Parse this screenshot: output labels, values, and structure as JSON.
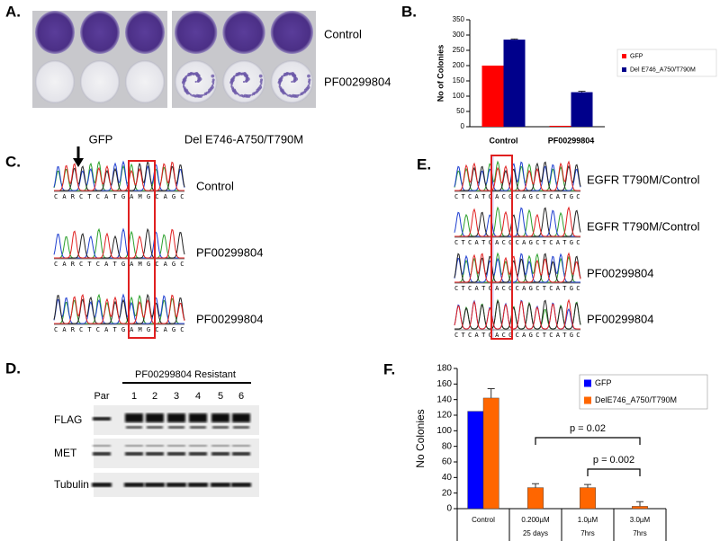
{
  "panels": {
    "a": {
      "label": "A.",
      "rows": [
        "Control",
        "PF00299804"
      ],
      "columns": [
        "GFP",
        "Del E746-A750/T790M"
      ]
    },
    "b": {
      "label": "B."
    },
    "c": {
      "label": "C.",
      "sequence": "CARCTCATGAMGCAGC",
      "rows": [
        "Control",
        "PF00299804",
        "PF00299804"
      ]
    },
    "d": {
      "label": "D.",
      "treatment": "PF00299804 Resistant",
      "lanes": [
        "Par",
        "1",
        "2",
        "3",
        "4",
        "5",
        "6"
      ],
      "blots": [
        "FLAG",
        "MET",
        "Tubulin"
      ]
    },
    "e": {
      "label": "E.",
      "sequence": "CTCATCACGCAGCTCATGC",
      "rows": [
        "EGFR T790M/Control",
        "EGFR T790M/Control",
        "PF00299804",
        "PF00299804"
      ]
    },
    "f": {
      "label": "F."
    }
  },
  "chart_data": [
    {
      "type": "bar",
      "y_label": "No of Colonies",
      "categories": [
        "Control",
        "PF00299804"
      ],
      "series": [
        {
          "name": "GFP",
          "color": "#ff0000",
          "values": [
            200,
            3
          ]
        },
        {
          "name": "Del E746_A750/T790M",
          "color": "#00008b",
          "values": [
            285,
            113
          ],
          "errors": [
            2,
            3
          ]
        }
      ],
      "ylim": [
        0,
        350
      ],
      "yticks": [
        0,
        50,
        100,
        150,
        200,
        250,
        300,
        350
      ],
      "legend": "right"
    },
    {
      "type": "bar",
      "y_label": "No Colonies",
      "categories": [
        "Control",
        "0.200µM",
        "1.0µM",
        "3.0µM"
      ],
      "sublabels": [
        null,
        "25 days",
        "7hrs",
        "7hrs"
      ],
      "series": [
        {
          "name": "GFP",
          "color": "#0000ff",
          "values": [
            125,
            null,
            null,
            null
          ]
        },
        {
          "name": "DelE746_A750/T790M",
          "color": "#ff6600",
          "values": [
            142,
            27,
            27,
            3
          ],
          "errors": [
            12,
            5,
            4,
            6
          ]
        }
      ],
      "ylim": [
        0,
        180
      ],
      "yticks": [
        0,
        20,
        40,
        60,
        80,
        100,
        120,
        140,
        160,
        180
      ],
      "legend": "top-right",
      "annotations": [
        "p = 0.02",
        "p = 0.002"
      ]
    }
  ]
}
